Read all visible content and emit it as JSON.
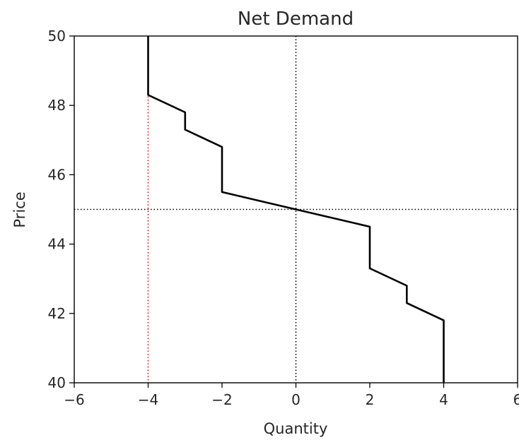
{
  "chart_data": {
    "type": "line",
    "title": "Net Demand",
    "xlabel": "Quantity",
    "ylabel": "Price",
    "xlim": [
      -6,
      6
    ],
    "ylim": [
      40,
      50
    ],
    "xticks": [
      -6,
      -4,
      -2,
      0,
      2,
      4,
      6
    ],
    "yticks": [
      40,
      42,
      44,
      46,
      48,
      50
    ],
    "xtick_labels": [
      "−6",
      "−4",
      "−2",
      "0",
      "2",
      "4",
      "6"
    ],
    "ytick_labels": [
      "40",
      "42",
      "44",
      "46",
      "48",
      "50"
    ],
    "grid": false,
    "series": [
      {
        "color": "#000000",
        "points": [
          {
            "x": -4,
            "y": 50
          },
          {
            "x": -4,
            "y": 48.3
          },
          {
            "x": -3,
            "y": 47.8
          },
          {
            "x": -3,
            "y": 47.3
          },
          {
            "x": -2,
            "y": 46.8
          },
          {
            "x": -2,
            "y": 45.5
          },
          {
            "x": 0,
            "y": 45
          },
          {
            "x": 2,
            "y": 44.5
          },
          {
            "x": 2,
            "y": 43.3
          },
          {
            "x": 3,
            "y": 42.8
          },
          {
            "x": 3,
            "y": 42.3
          },
          {
            "x": 4,
            "y": 41.8
          },
          {
            "x": 4,
            "y": 40
          }
        ]
      }
    ],
    "reference_lines": [
      {
        "orientation": "vertical",
        "value": 0,
        "color": "#000000",
        "style": "dotted"
      },
      {
        "orientation": "horizontal",
        "value": 45,
        "color": "#000000",
        "style": "dotted"
      },
      {
        "orientation": "vertical",
        "value": -4,
        "color": "#ff0000",
        "style": "dotted"
      }
    ]
  }
}
